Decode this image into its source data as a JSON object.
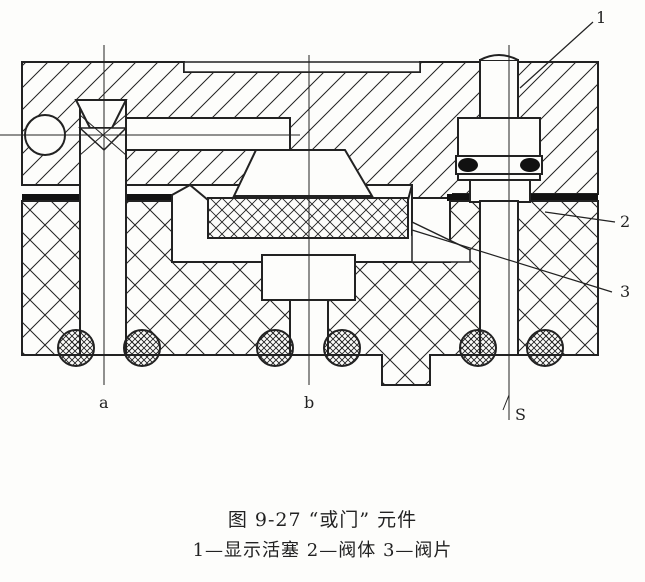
{
  "callouts": {
    "c1": "1",
    "c2": "2",
    "c3": "3"
  },
  "ports": {
    "a": "a",
    "b": "b",
    "s": "S"
  },
  "caption": {
    "title": "图 9-27    “或门” 元件",
    "legend": "1—显示活塞   2—阀体   3—阀片"
  },
  "colors": {
    "ink": "#222222",
    "paper": "#fdfdfb"
  }
}
